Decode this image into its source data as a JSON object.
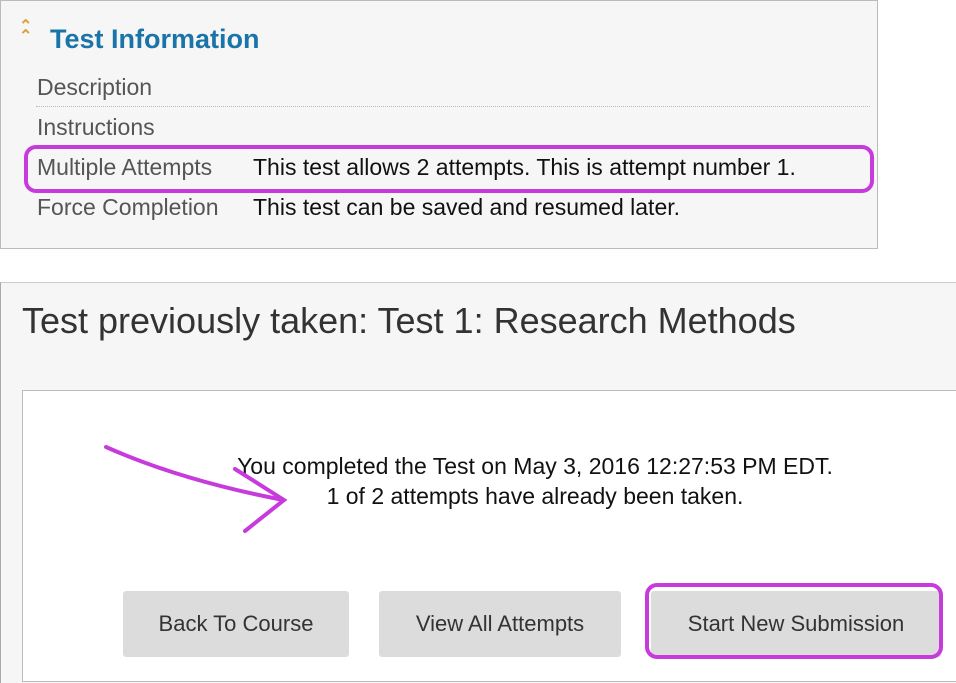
{
  "test_info": {
    "title": "Test Information",
    "collapse_icon": "double-chevron-up-icon",
    "rows": [
      {
        "label": "Description",
        "value": ""
      },
      {
        "label": "Instructions",
        "value": ""
      },
      {
        "label": "Multiple Attempts",
        "value": "This test allows 2 attempts. This is attempt number 1."
      },
      {
        "label": "Force Completion",
        "value": "This test can be saved and resumed later."
      }
    ]
  },
  "result": {
    "title": "Test previously taken: Test 1: Research Methods",
    "message_line1": "You completed the Test on May 3, 2016 12:27:53 PM EDT.",
    "message_line2": "1 of 2 attempts have already been taken.",
    "buttons": {
      "back": "Back To Course",
      "view_all": "View All Attempts",
      "start_new": "Start New Submission"
    }
  },
  "colors": {
    "annotation": "#c73bdc",
    "title_blue": "#1a74a8",
    "chevron": "#d9a13a"
  }
}
